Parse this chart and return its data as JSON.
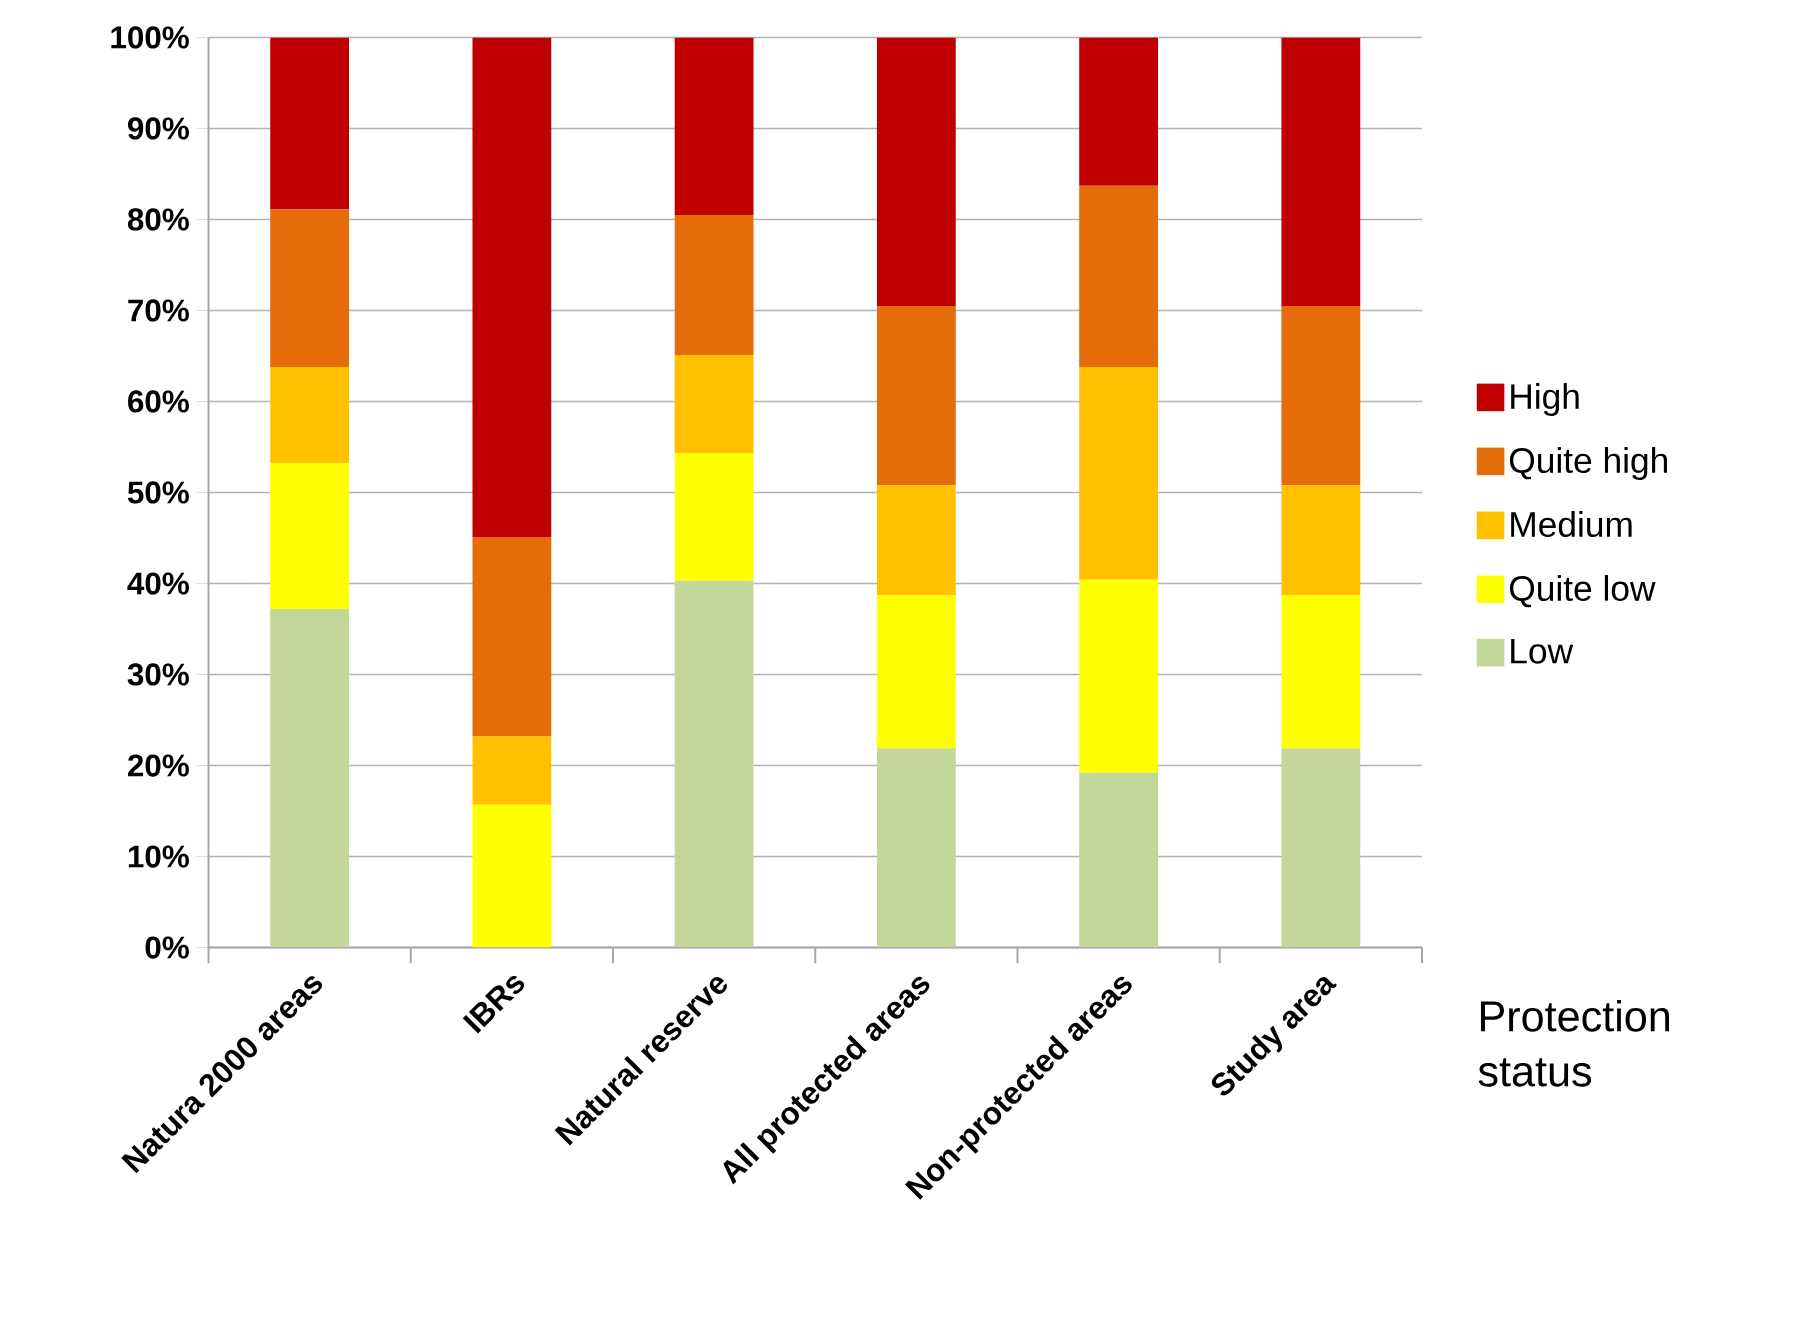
{
  "chart_data": {
    "type": "bar",
    "stacked": true,
    "xlabel": "Protection status",
    "categories": [
      "Natura 2000 areas",
      "IBRs",
      "Natural reserve",
      "All protected areas",
      "Non-protected areas",
      "Study area"
    ],
    "series": [
      {
        "name": "Low",
        "color": "#c4d79b",
        "values": [
          37.2,
          0,
          40.3,
          21.9,
          19.2,
          21.9
        ]
      },
      {
        "name": "Quite low",
        "color": "#ffff00",
        "values": [
          16.0,
          15.7,
          14.0,
          16.8,
          21.2,
          16.8
        ]
      },
      {
        "name": "Medium",
        "color": "#ffc000",
        "values": [
          10.6,
          7.5,
          10.8,
          12.1,
          23.4,
          12.1
        ]
      },
      {
        "name": "Quite high",
        "color": "#e46c0a",
        "values": [
          17.3,
          21.9,
          15.4,
          19.7,
          19.9,
          19.7
        ]
      },
      {
        "name": "High",
        "color": "#c00000",
        "values": [
          18.9,
          54.9,
          19.5,
          29.5,
          16.3,
          29.5
        ]
      }
    ],
    "ylim": [
      0,
      100
    ],
    "yticks": [
      {
        "value": 0,
        "label": "0%"
      },
      {
        "value": 10,
        "label": "10%"
      },
      {
        "value": 20,
        "label": "20%"
      },
      {
        "value": 30,
        "label": "30%"
      },
      {
        "value": 40,
        "label": "40%"
      },
      {
        "value": 50,
        "label": "50%"
      },
      {
        "value": 60,
        "label": "60%"
      },
      {
        "value": 70,
        "label": "70%"
      },
      {
        "value": 80,
        "label": "80%"
      },
      {
        "value": 90,
        "label": "90%"
      },
      {
        "value": 100,
        "label": "100%"
      }
    ],
    "grid": "y",
    "legend": "right"
  }
}
